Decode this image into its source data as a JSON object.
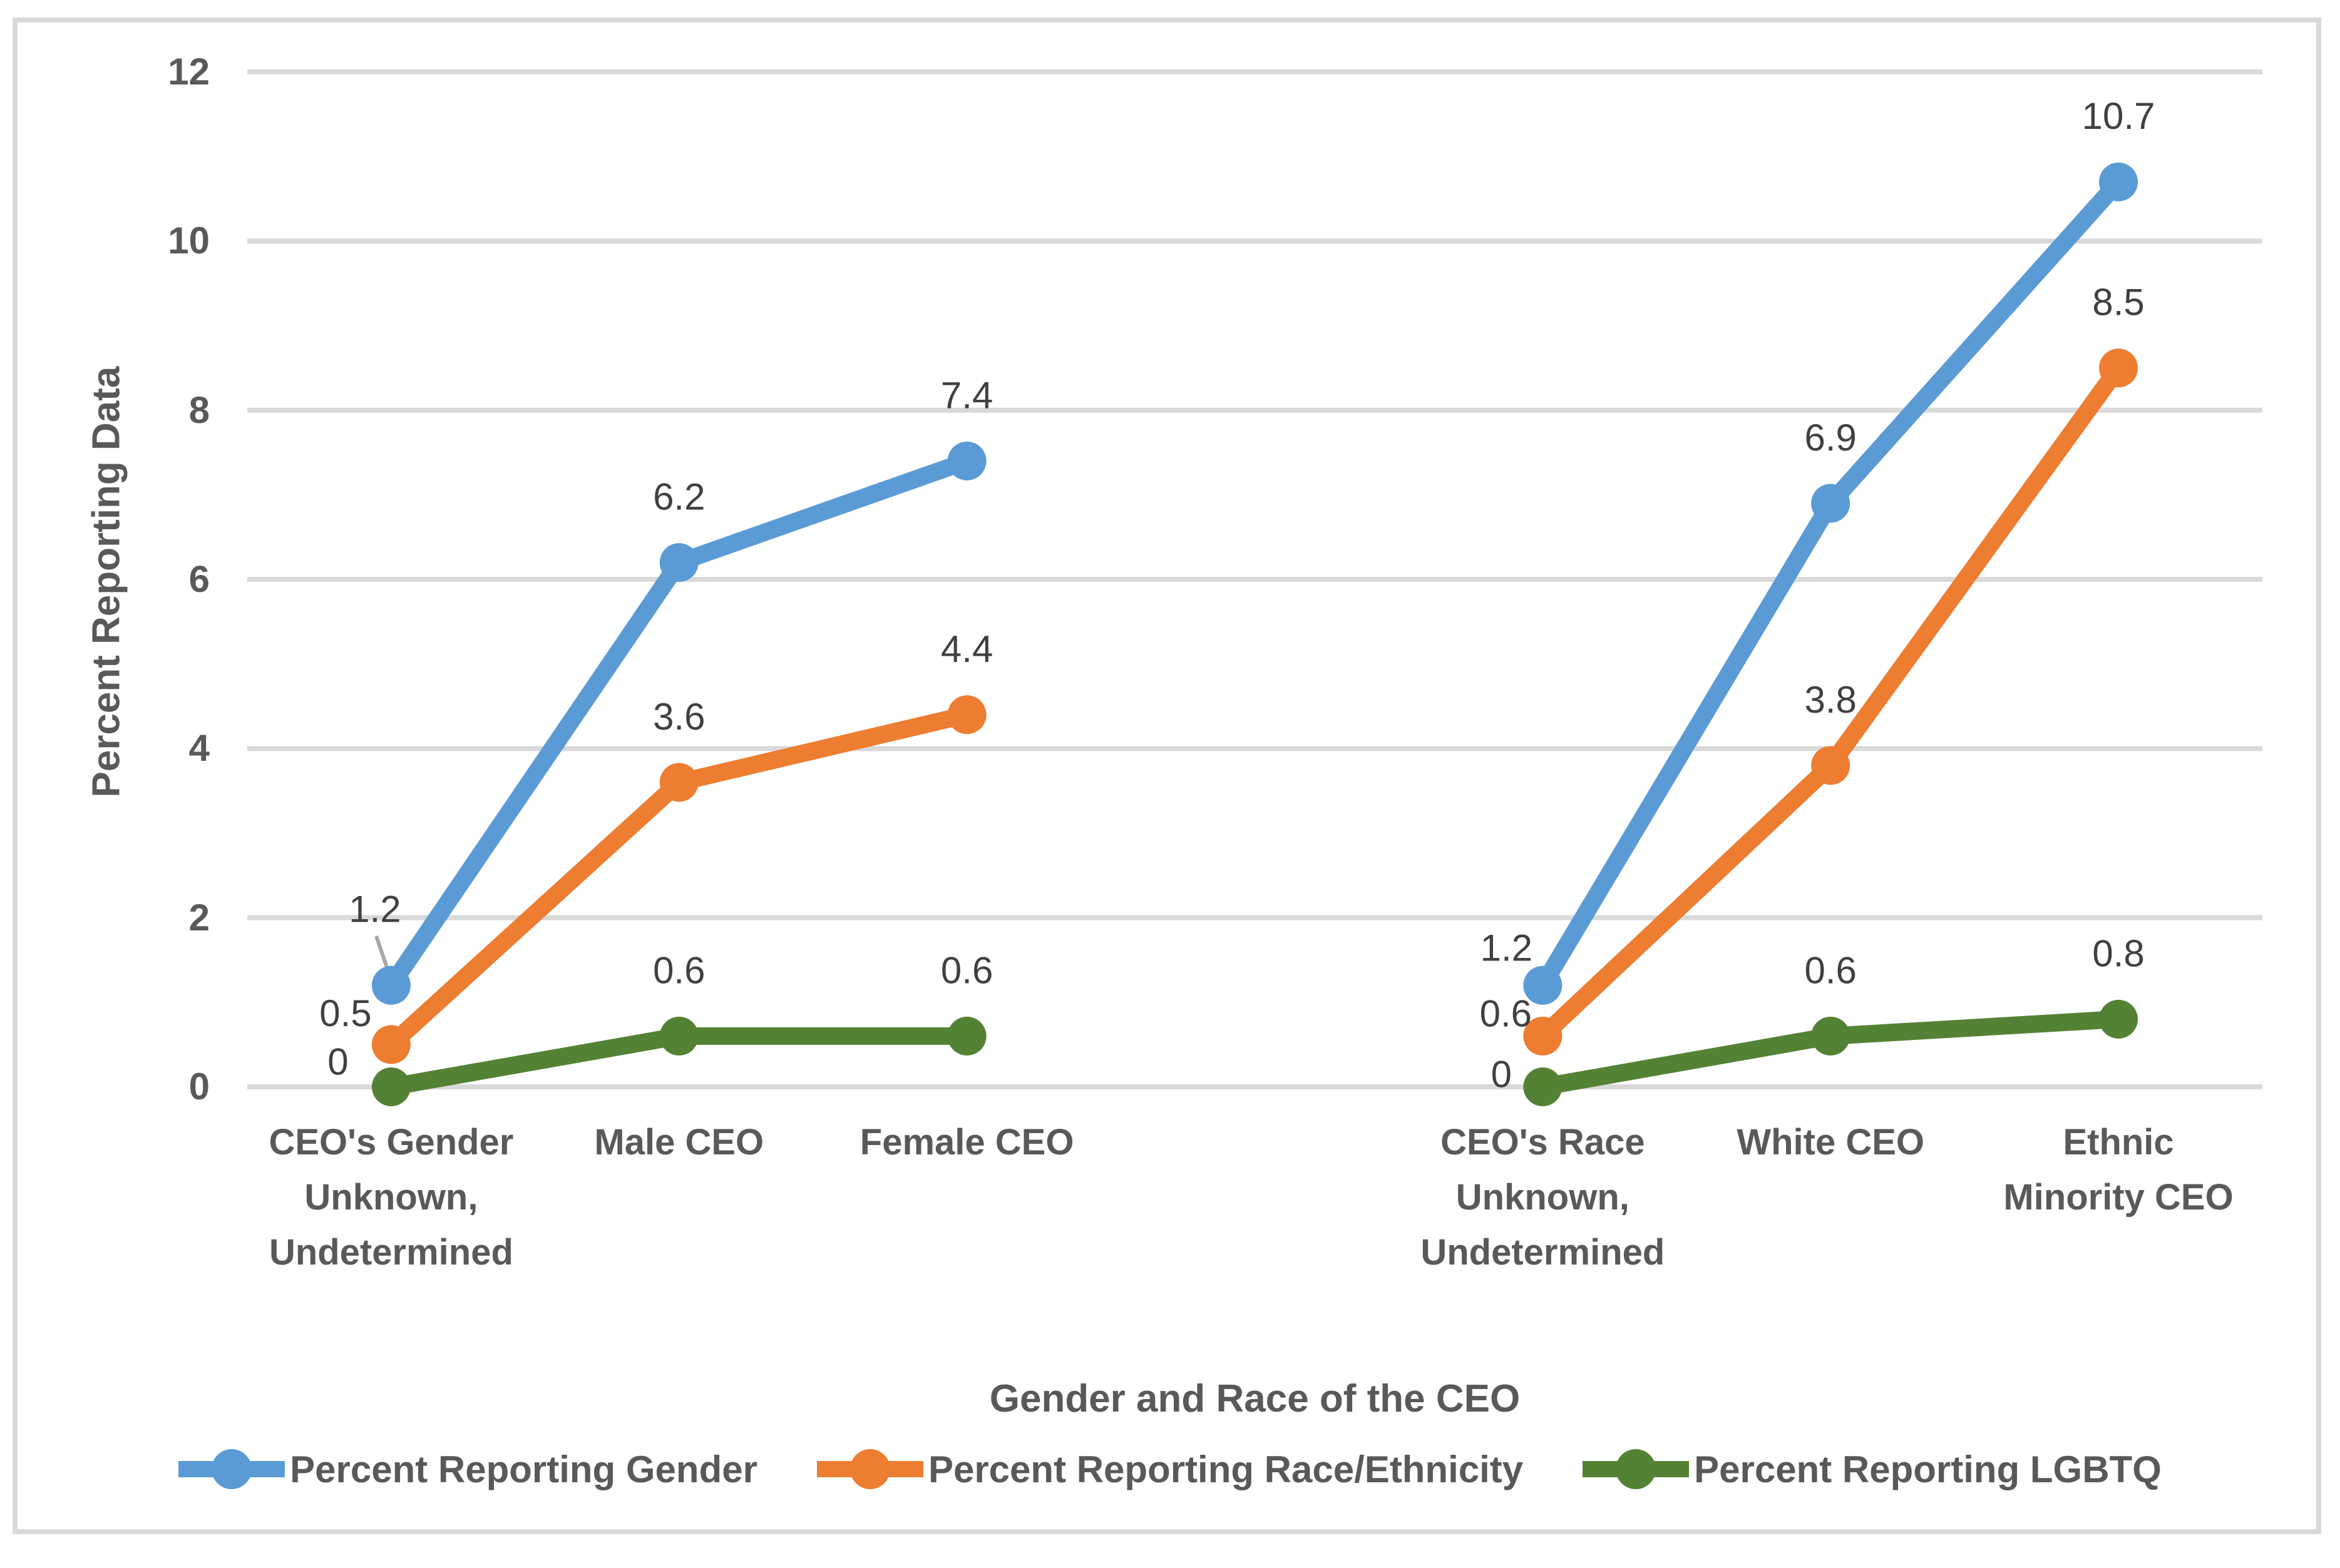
{
  "chart_data": {
    "type": "line",
    "xlabel": "Gender and Race of the CEO",
    "ylabel": "Percent Reporting Data",
    "ylim": [
      0,
      12
    ],
    "yticks": [
      0,
      2,
      4,
      6,
      8,
      10,
      12
    ],
    "grid": true,
    "legend_position": "bottom",
    "categories": [
      [
        "CEO's Gender",
        "Unknown,",
        "Undetermined"
      ],
      [
        "Male CEO"
      ],
      [
        "Female CEO"
      ],
      [],
      [
        "CEO's Race",
        "Unknown,",
        "Undetermined"
      ],
      [
        "White CEO"
      ],
      [
        "Ethnic",
        "Minority CEO"
      ]
    ],
    "series": [
      {
        "name": "Percent Reporting Gender",
        "color": "#5B9BD5",
        "values": [
          1.2,
          6.2,
          7.4,
          null,
          1.2,
          6.9,
          10.7
        ]
      },
      {
        "name": "Percent Reporting Race/Ethnicity",
        "color": "#ED7D31",
        "values": [
          0.5,
          3.6,
          4.4,
          null,
          0.6,
          3.8,
          8.5
        ]
      },
      {
        "name": "Percent Reporting LGBTQ",
        "color": "#548235",
        "values": [
          0.0,
          0.6,
          0.6,
          null,
          0.0,
          0.6,
          0.8
        ]
      }
    ]
  },
  "colors": {
    "gridline": "#D9D9D9",
    "border": "#D9D9D9",
    "data_label": "#404040",
    "axis_text": "#595959",
    "leader_line": "#A6A6A6",
    "background": "#FFFFFF"
  }
}
